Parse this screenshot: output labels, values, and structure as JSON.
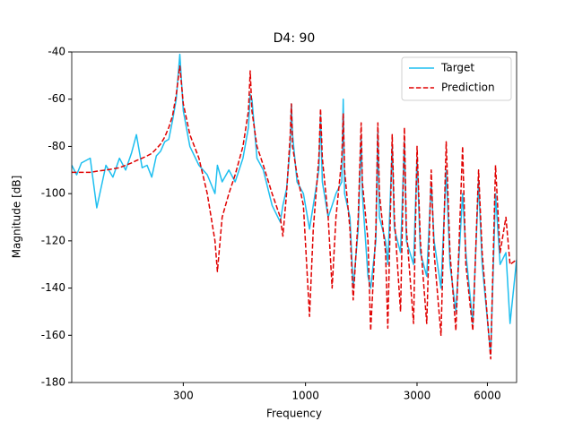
{
  "chart_data": {
    "type": "line",
    "title": "D4: 90",
    "xlabel": "Frequency",
    "ylabel": "Magnitude [dB]",
    "xscale": "log",
    "xlim": [
      100,
      8000
    ],
    "xticks": [
      300,
      1000,
      3000,
      6000
    ],
    "ylim": [
      -180,
      -40
    ],
    "yticks": [
      -180,
      -160,
      -140,
      -120,
      -100,
      -80,
      -60,
      -40
    ],
    "legend": "upper right",
    "x": [
      100,
      105,
      110,
      120,
      128,
      140,
      150,
      160,
      170,
      180,
      189,
      200,
      210,
      220,
      230,
      240,
      250,
      260,
      270,
      280,
      290,
      300,
      320,
      350,
      380,
      410,
      420,
      440,
      470,
      500,
      540,
      570,
      580,
      590,
      620,
      660,
      720,
      780,
      800,
      830,
      860,
      870,
      880,
      920,
      980,
      1040,
      1080,
      1140,
      1160,
      1180,
      1250,
      1300,
      1350,
      1430,
      1450,
      1470,
      1550,
      1600,
      1680,
      1730,
      1750,
      1850,
      1900,
      2000,
      2040,
      2070,
      2200,
      2250,
      2350,
      2400,
      2550,
      2650,
      2700,
      2900,
      3000,
      3100,
      3300,
      3450,
      3550,
      3800,
      4000,
      4150,
      4400,
      4700,
      4850,
      5200,
      5500,
      5700,
      6200,
      6500,
      6800,
      7200,
      7500,
      8000
    ],
    "series": [
      {
        "name": "Target",
        "color": "#1ebff0",
        "dash": false,
        "values": [
          -88,
          -92,
          -87,
          -85,
          -106,
          -88,
          -93,
          -85,
          -90,
          -83,
          -75,
          -89,
          -88,
          -93,
          -84,
          -82,
          -78,
          -77,
          -69,
          -60,
          -41,
          -65,
          -80,
          -88,
          -92,
          -100,
          -88,
          -95,
          -90,
          -95,
          -85,
          -72,
          -58,
          -60,
          -85,
          -90,
          -105,
          -112,
          -105,
          -98,
          -80,
          -62,
          -75,
          -95,
          -100,
          -115,
          -105,
          -90,
          -67,
          -95,
          -110,
          -105,
          -100,
          -95,
          -60,
          -100,
          -110,
          -140,
          -115,
          -75,
          -100,
          -135,
          -140,
          -120,
          -73,
          -110,
          -120,
          -130,
          -80,
          -115,
          -125,
          -78,
          -120,
          -130,
          -85,
          -125,
          -135,
          -95,
          -120,
          -140,
          -90,
          -130,
          -150,
          -100,
          -125,
          -155,
          -95,
          -130,
          -168,
          -100,
          -130,
          -125,
          -155,
          -128
        ]
      },
      {
        "name": "Prediction",
        "color": "#e00000",
        "dash": true,
        "values": [
          -91,
          -91,
          -91,
          -91,
          -90.5,
          -90,
          -89.5,
          -89,
          -88,
          -87,
          -86,
          -85,
          -84,
          -83,
          -81,
          -79,
          -76,
          -72,
          -67,
          -58,
          -46,
          -62,
          -75,
          -85,
          -100,
          -120,
          -133,
          -110,
          -100,
          -92,
          -80,
          -65,
          -48,
          -65,
          -80,
          -88,
          -100,
          -110,
          -118,
          -100,
          -75,
          -62,
          -80,
          -92,
          -105,
          -152,
          -115,
          -85,
          -64,
          -85,
          -110,
          -140,
          -110,
          -85,
          -66,
          -90,
          -115,
          -145,
          -110,
          -70,
          -95,
          -120,
          -158,
          -115,
          -70,
          -100,
          -125,
          -157,
          -75,
          -110,
          -150,
          -72,
          -115,
          -155,
          -80,
          -120,
          -155,
          -90,
          -125,
          -160,
          -78,
          -125,
          -158,
          -80,
          -130,
          -158,
          -90,
          -125,
          -170,
          -88,
          -125,
          -110,
          -130,
          -128
        ]
      }
    ]
  }
}
